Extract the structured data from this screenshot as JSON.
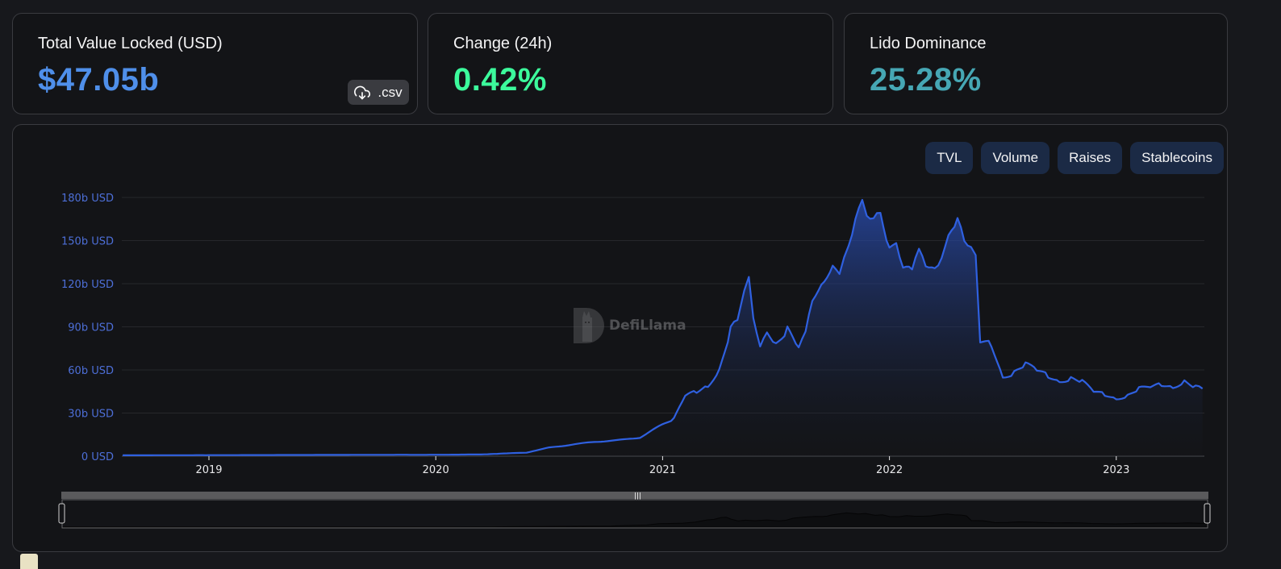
{
  "stats": [
    {
      "label": "Total Value Locked (USD)",
      "value": "$47.05b",
      "color": "#4f8fea"
    },
    {
      "label": "Change (24h)",
      "value": "0.42%",
      "color": "#3cfa9c"
    },
    {
      "label": "Lido Dominance",
      "value": "25.28%",
      "color": "#46a7b4"
    }
  ],
  "csv_button": {
    "label": ".csv",
    "icon": "cloud-download-icon"
  },
  "toggles": [
    {
      "label": "TVL"
    },
    {
      "label": "Volume"
    },
    {
      "label": "Raises"
    },
    {
      "label": "Stablecoins"
    }
  ],
  "watermark": {
    "text": "DefiLlama",
    "icon": "llama-logo-icon"
  },
  "colors": {
    "line": "#2f60e0",
    "grid": "#26272b",
    "ytick": "#4d6fd8"
  },
  "chart_data": {
    "type": "area",
    "title": "Total Value Locked (USD)",
    "xlabel": "",
    "ylabel": "",
    "x_ticks": [
      "2019",
      "2020",
      "2021",
      "2022",
      "2023"
    ],
    "y_ticks": [
      "0 USD",
      "30b USD",
      "60b USD",
      "90b USD",
      "120b USD",
      "150b USD",
      "180b USD"
    ],
    "ylim": [
      0,
      180
    ],
    "grid": true,
    "legend": "none",
    "series": [
      {
        "name": "TVL (billions USD)",
        "x": [
          2018.62,
          2019.0,
          2019.5,
          2020.0,
          2020.2,
          2020.4,
          2020.5,
          2020.6,
          2020.7,
          2020.8,
          2020.9,
          2021.0,
          2021.05,
          2021.1,
          2021.15,
          2021.2,
          2021.25,
          2021.3,
          2021.33,
          2021.36,
          2021.38,
          2021.4,
          2021.43,
          2021.46,
          2021.5,
          2021.55,
          2021.6,
          2021.63,
          2021.66,
          2021.7,
          2021.75,
          2021.78,
          2021.8,
          2021.82,
          2021.85,
          2021.88,
          2021.9,
          2021.93,
          2021.96,
          2022.0,
          2022.03,
          2022.06,
          2022.1,
          2022.13,
          2022.16,
          2022.2,
          2022.23,
          2022.26,
          2022.3,
          2022.33,
          2022.36,
          2022.38,
          2022.4,
          2022.45,
          2022.5,
          2022.55,
          2022.6,
          2022.65,
          2022.7,
          2022.75,
          2022.8,
          2022.85,
          2022.9,
          2022.95,
          2023.0,
          2023.05,
          2023.1,
          2023.15,
          2023.2,
          2023.25,
          2023.3,
          2023.35,
          2023.38
        ],
        "values": [
          0.6,
          0.7,
          0.9,
          1.0,
          1.2,
          2.5,
          6,
          8,
          10,
          11,
          13,
          22,
          26,
          42,
          45,
          49,
          60,
          88,
          95,
          118,
          122,
          98,
          75,
          85,
          78,
          88,
          75,
          85,
          110,
          122,
          132,
          130,
          135,
          150,
          163,
          175,
          170,
          162,
          168,
          145,
          152,
          130,
          128,
          142,
          135,
          134,
          138,
          150,
          162,
          152,
          148,
          138,
          80,
          78,
          55,
          58,
          64,
          60,
          56,
          52,
          54,
          52,
          45,
          43,
          40,
          42,
          47,
          48,
          50,
          48,
          52,
          48,
          47
        ]
      }
    ]
  }
}
